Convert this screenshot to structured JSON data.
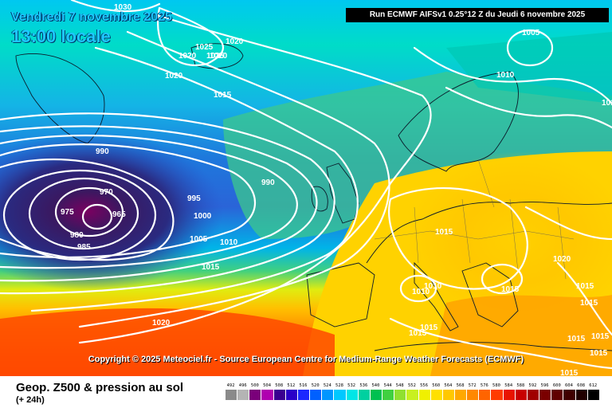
{
  "header": {
    "date": "Vendredi 7 novembre 2025",
    "time": "13:00 locale",
    "run": "Run ECMWF AIFSv1 0.25°12 Z du Jeudi 6 novembre 2025"
  },
  "copyright": "Copyright © 2025 Meteociel.fr - Source European Centre for Medium-Range Weather Forecasts (ECMWF)",
  "footer": {
    "title": "Geop. Z500 & pression au sol",
    "lead": "(+ 24h)"
  },
  "isobar_labels": [
    "1030",
    "1025",
    "1025",
    "1020",
    "1020",
    "1020",
    "1020",
    "1015",
    "990",
    "970",
    "975",
    "965",
    "980",
    "985",
    "995",
    "1000",
    "1005",
    "1010",
    "1015",
    "990",
    "1020",
    "1005",
    "1010",
    "1015",
    "1015",
    "1010",
    "1010",
    "1015",
    "1015",
    "1015",
    "1020",
    "1015",
    "1015",
    "1015",
    "1015",
    "1015",
    "1015"
  ],
  "colorbar": {
    "labels": [
      "492",
      "496",
      "500",
      "504",
      "508",
      "512",
      "516",
      "520",
      "524",
      "528",
      "532",
      "536",
      "540",
      "544",
      "548",
      "552",
      "556",
      "560",
      "564",
      "568",
      "572",
      "576",
      "580",
      "584",
      "588",
      "592",
      "596",
      "600",
      "604",
      "608",
      "612"
    ],
    "colors": [
      "#8a8a8a",
      "#b4b4b4",
      "#7a007a",
      "#b000b0",
      "#3a0090",
      "#2a00c8",
      "#1c28ff",
      "#0060ff",
      "#0096ff",
      "#00c8ff",
      "#00e6e6",
      "#00d0a0",
      "#00c050",
      "#40d040",
      "#90e030",
      "#c8f020",
      "#f0f000",
      "#ffe000",
      "#ffc800",
      "#ffa800",
      "#ff8800",
      "#ff6400",
      "#ff3c00",
      "#e81400",
      "#c80000",
      "#a00000",
      "#7a0000",
      "#600000",
      "#400000",
      "#200000",
      "#000000"
    ]
  }
}
